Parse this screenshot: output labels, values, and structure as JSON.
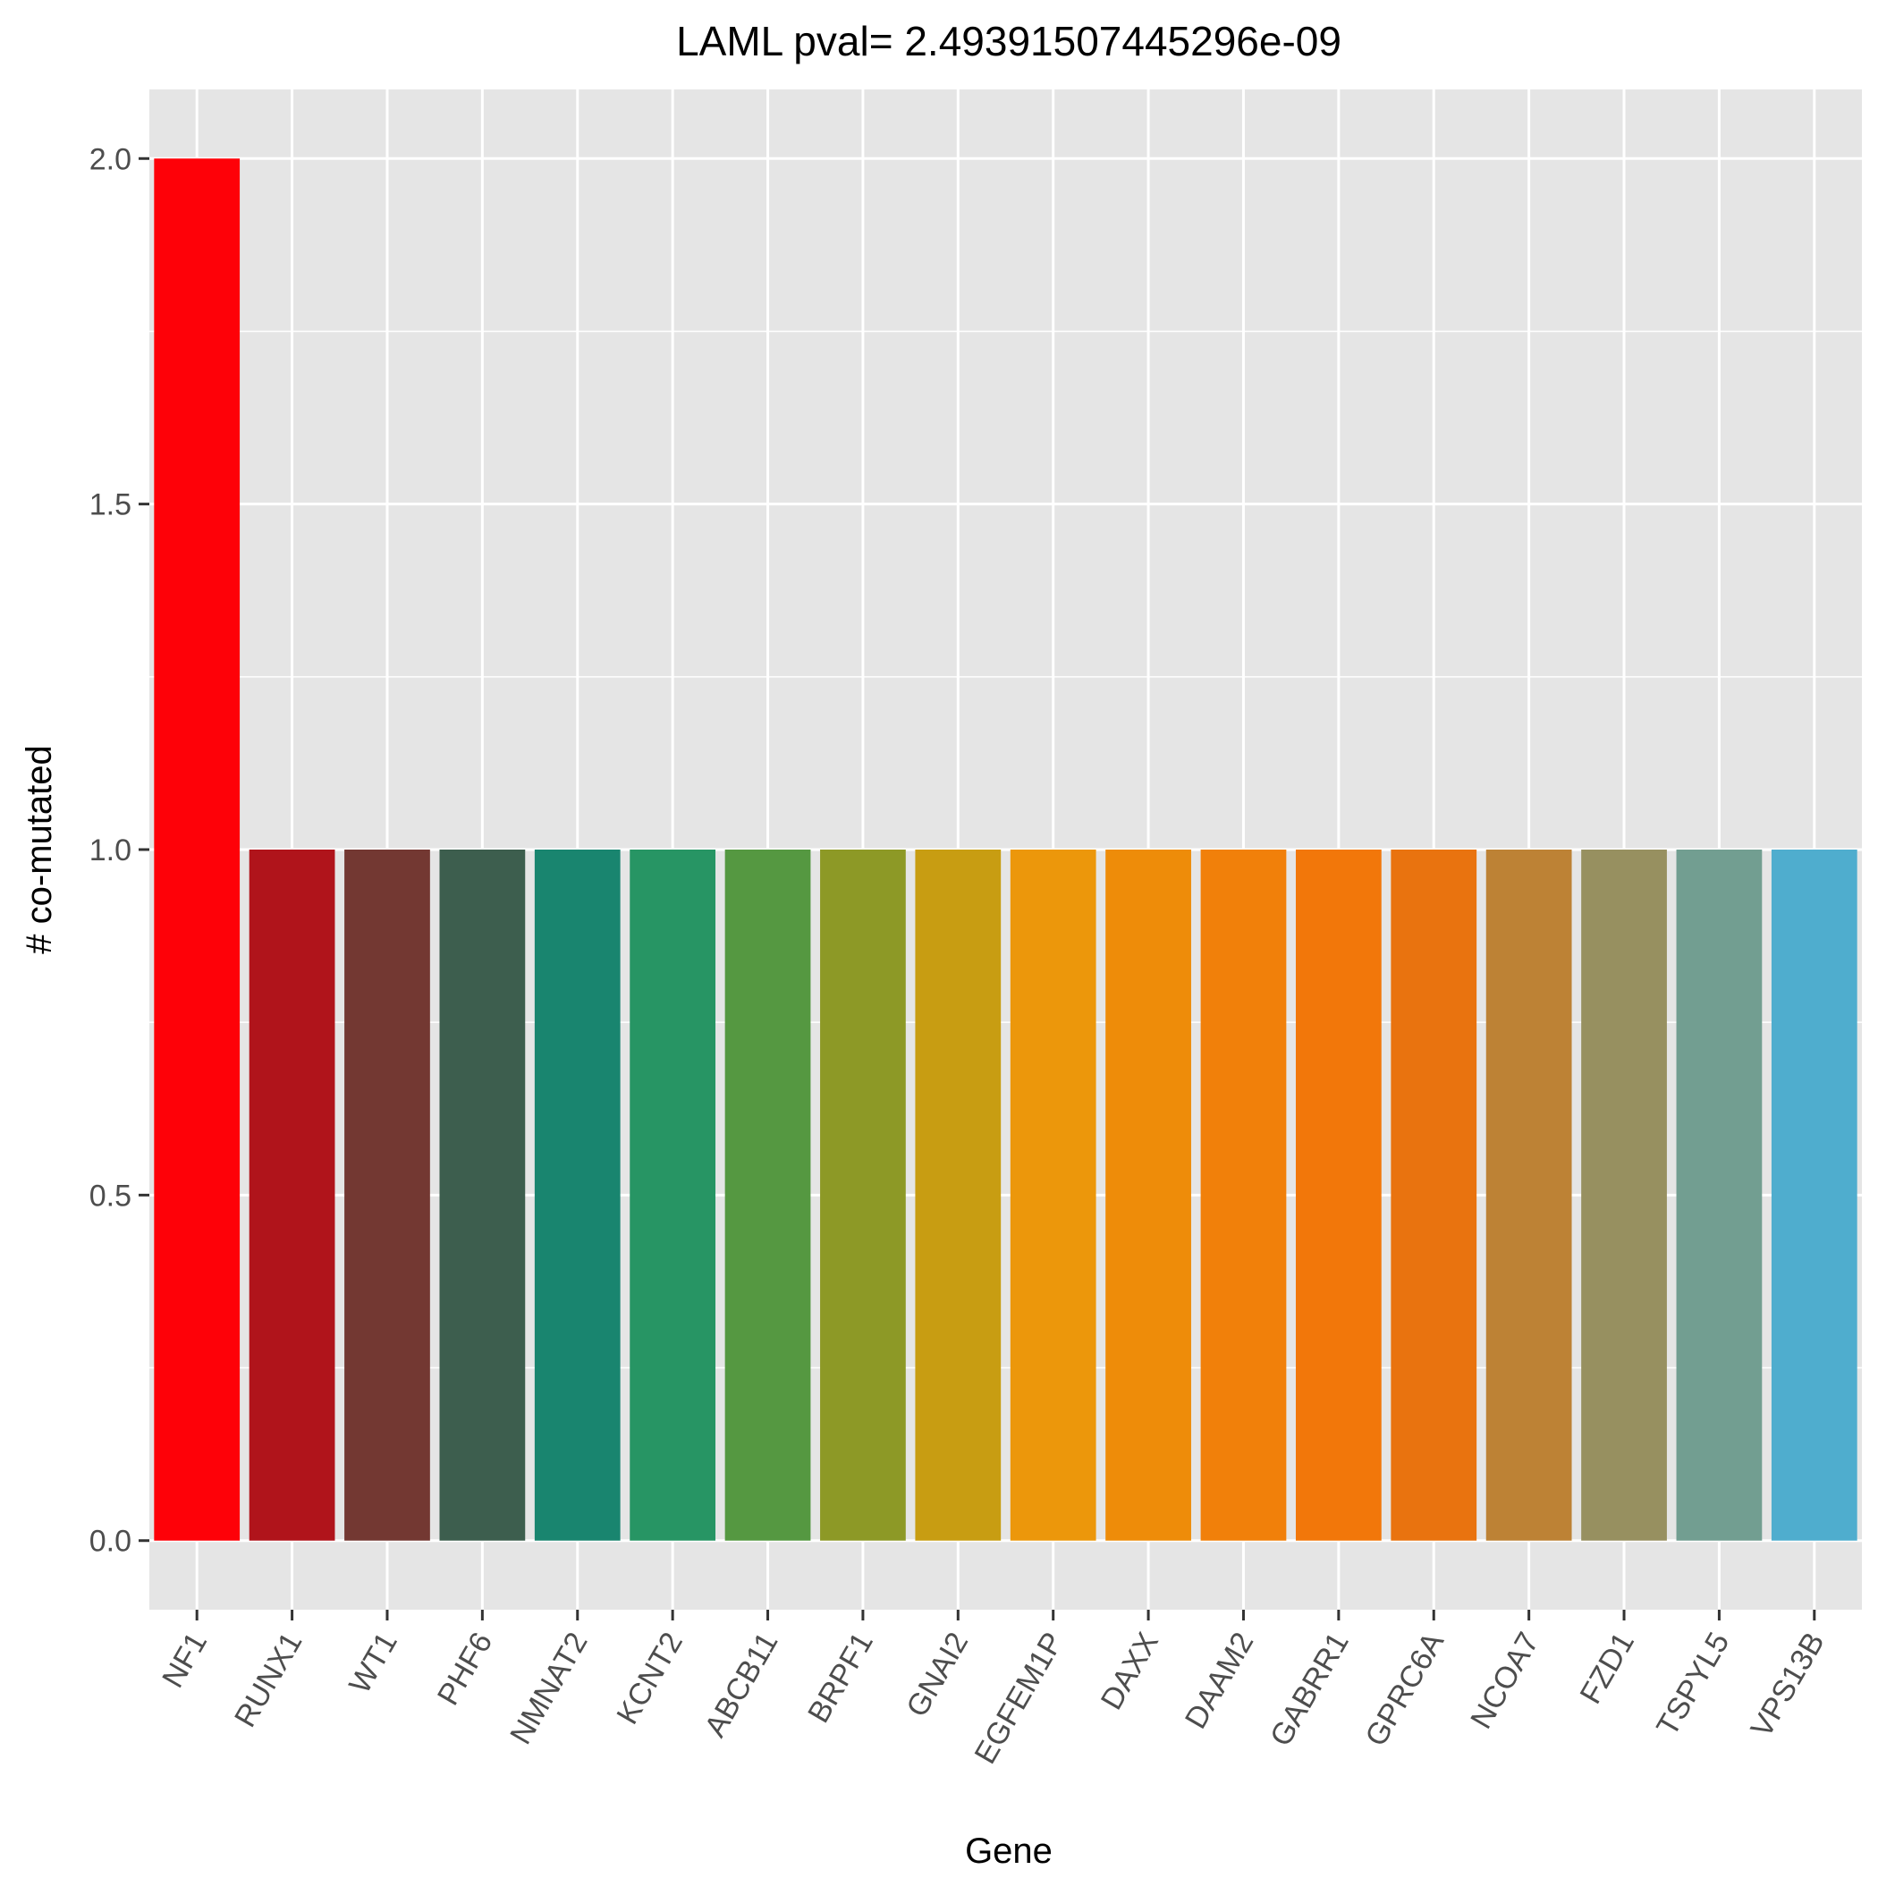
{
  "chart_data": {
    "type": "bar",
    "title": "LAML pval= 2.49391507445296e-09",
    "xlabel": "Gene",
    "ylabel": "# co-mutated",
    "ylim": [
      -0.1,
      2.1
    ],
    "yticks": [
      0.0,
      0.5,
      1.0,
      1.5,
      2.0
    ],
    "ytick_labels": [
      "0.0",
      "0.5",
      "1.0",
      "1.5",
      "2.0"
    ],
    "grid": true,
    "legend": "none",
    "panel_background": "#e5e5e5",
    "grid_color": "#ffffff",
    "categories": [
      "NF1",
      "RUNX1",
      "WT1",
      "PHF6",
      "NMNAT2",
      "KCNT2",
      "ABCB11",
      "BRPF1",
      "GNAI2",
      "EGFEM1P",
      "DAXX",
      "DAAM2",
      "GABRR1",
      "GPRC6A",
      "NCOA7",
      "FZD1",
      "TSPYL5",
      "VPS13B"
    ],
    "values": [
      2,
      1,
      1,
      1,
      1,
      1,
      1,
      1,
      1,
      1,
      1,
      1,
      1,
      1,
      1,
      1,
      1,
      1
    ],
    "colors": [
      "#fe0108",
      "#b0141b",
      "#733832",
      "#3d5e4e",
      "#19856f",
      "#279564",
      "#559841",
      "#8d9926",
      "#c89d12",
      "#ec970b",
      "#ee8c09",
      "#f1800a",
      "#f2770a",
      "#e9730f",
      "#bd8235",
      "#979060",
      "#729e91",
      "#4fadce"
    ]
  }
}
